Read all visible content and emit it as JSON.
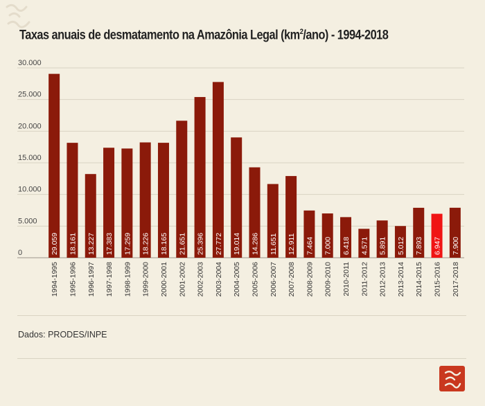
{
  "title": "Taxas anuais de desmatamento na Amazônia Legal (km",
  "title_sup": "2",
  "title_suffix": "/ano) - 1994-2018",
  "source": "Dados: PRODES/INPE",
  "colors": {
    "bar": "#8b1a0a",
    "highlight": "#f01414",
    "background": "#f4efe1"
  },
  "chart_data": {
    "type": "bar",
    "title": "Taxas anuais de desmatamento na Amazônia Legal (km²/ano) - 1994-2018",
    "categories": [
      "1994-1995",
      "1995-1996",
      "1996-1997",
      "1997-1998",
      "1998-1999",
      "1999-2000",
      "2000-2001",
      "2001-2002",
      "2002-2003",
      "2003-2004",
      "2004-2005",
      "2005-2006",
      "2006-2007",
      "2007-2008",
      "2008-2009",
      "2009-2010",
      "2010-2011",
      "2011-2012",
      "2012-2013",
      "2013-2014",
      "2014-2015",
      "2015-2016",
      "2017-2018"
    ],
    "values": [
      29059,
      18161,
      13227,
      17383,
      17259,
      18226,
      18165,
      21651,
      25396,
      27772,
      19014,
      14286,
      11651,
      12911,
      7464,
      7000,
      6418,
      4571,
      5891,
      5012,
      7893,
      6947,
      7900
    ],
    "value_labels": [
      "29.059",
      "18.161",
      "13.227",
      "17.383",
      "17.259",
      "18.226",
      "18.165",
      "21.651",
      "25.396",
      "27.772",
      "19.014",
      "14.286",
      "11.651",
      "12.911",
      "7.464",
      "7.000",
      "6.418",
      "4.571",
      "5.891",
      "5.012",
      "7.893",
      "6.947",
      "7.900"
    ],
    "highlight_index": 21,
    "yticks": [
      0,
      5000,
      10000,
      15000,
      20000,
      25000,
      30000
    ],
    "ytick_labels": [
      "0",
      "5.000",
      "10.000",
      "15.000",
      "20.000",
      "25.000",
      "30.000"
    ],
    "ylim": [
      0,
      30000
    ],
    "grid": true
  }
}
